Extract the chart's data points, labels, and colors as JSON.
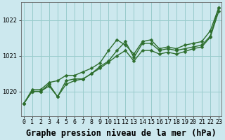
{
  "xlabel": "Graphe pression niveau de la mer (hPa)",
  "bg_color": "#cce8ee",
  "grid_color": "#99cccc",
  "line_color": "#2d6e2d",
  "x_ticks": [
    0,
    1,
    2,
    3,
    4,
    5,
    6,
    7,
    8,
    9,
    10,
    11,
    12,
    13,
    14,
    15,
    16,
    17,
    18,
    19,
    20,
    21,
    22,
    23
  ],
  "ylim": [
    1019.3,
    1022.5
  ],
  "yticks": [
    1020,
    1021,
    1022
  ],
  "series": [
    [
      1019.65,
      1020.0,
      1020.0,
      1020.2,
      1019.85,
      1020.3,
      1020.35,
      1020.35,
      1020.5,
      1020.7,
      1020.85,
      1021.15,
      1021.4,
      1020.95,
      1021.35,
      1021.35,
      1021.15,
      1021.2,
      1021.15,
      1021.2,
      1021.25,
      1021.3,
      1021.55,
      1022.35
    ],
    [
      1019.65,
      1020.05,
      1020.05,
      1020.25,
      1020.3,
      1020.45,
      1020.45,
      1020.55,
      1020.65,
      1020.8,
      1021.15,
      1021.45,
      1021.3,
      1021.05,
      1021.4,
      1021.45,
      1021.2,
      1021.25,
      1021.2,
      1021.3,
      1021.35,
      1021.4,
      1021.7,
      1022.35
    ],
    [
      1019.65,
      1020.0,
      1020.0,
      1020.15,
      1019.85,
      1020.2,
      1020.3,
      1020.35,
      1020.5,
      1020.65,
      1020.82,
      1021.0,
      1021.15,
      1020.85,
      1021.15,
      1021.15,
      1021.05,
      1021.1,
      1021.05,
      1021.12,
      1021.2,
      1021.25,
      1021.52,
      1022.25
    ]
  ],
  "marker": "D",
  "markersize": 2.5,
  "linewidth": 1.0,
  "tick_fontsize": 6.0,
  "xlabel_fontsize": 8.5,
  "xlabel_bold": true,
  "spine_color": "#666666"
}
